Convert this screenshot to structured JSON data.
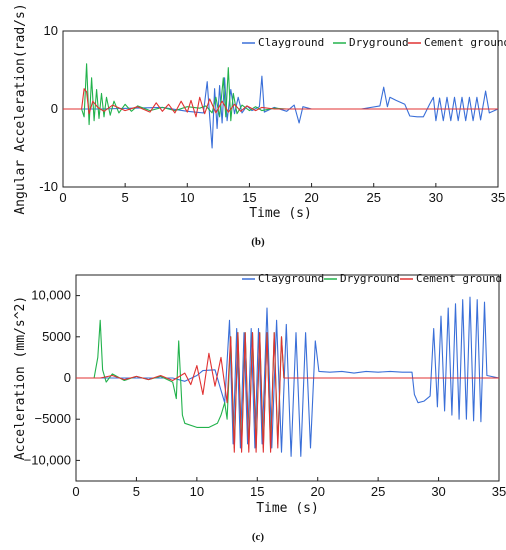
{
  "chart_data": [
    {
      "type": "line",
      "caption": "(b)",
      "xlabel": "Time (s)",
      "ylabel": "Angular Acceleration(rad/s)",
      "xlim": [
        0,
        35
      ],
      "ylim": [
        -10,
        10
      ],
      "xticks": [
        "0",
        "5",
        "10",
        "15",
        "20",
        "25",
        "30",
        "35"
      ],
      "yticks": [
        "10",
        "0",
        "-10"
      ],
      "legend_position": "top-right",
      "series": [
        {
          "name": "Clayground",
          "color": "#3a6fd8",
          "points": [
            [
              0,
              0
            ],
            [
              3,
              0
            ],
            [
              8,
              0.2
            ],
            [
              10,
              -0.3
            ],
            [
              11.3,
              -0.5
            ],
            [
              11.6,
              3.5
            ],
            [
              11.8,
              -1
            ],
            [
              12,
              -5
            ],
            [
              12.2,
              2.6
            ],
            [
              12.4,
              -2.5
            ],
            [
              12.6,
              3
            ],
            [
              12.8,
              -1.8
            ],
            [
              13,
              4
            ],
            [
              13.2,
              -1.5
            ],
            [
              13.5,
              2.5
            ],
            [
              13.8,
              -0.6
            ],
            [
              14.1,
              1.5
            ],
            [
              14.4,
              -0.5
            ],
            [
              14.8,
              0.4
            ],
            [
              15.2,
              -0.2
            ],
            [
              15.8,
              0.3
            ],
            [
              16,
              4.2
            ],
            [
              16.2,
              -0.4
            ],
            [
              17,
              0.2
            ],
            [
              18,
              -0.3
            ],
            [
              18.6,
              0.5
            ],
            [
              19,
              -1.8
            ],
            [
              19.3,
              0.3
            ],
            [
              20,
              0
            ],
            [
              24,
              0
            ],
            [
              25.5,
              0.4
            ],
            [
              25.8,
              2.8
            ],
            [
              26.1,
              0.3
            ],
            [
              26.3,
              1.5
            ],
            [
              26.8,
              1.1
            ],
            [
              27.5,
              0.6
            ],
            [
              27.9,
              -0.9
            ],
            [
              28.5,
              -1
            ],
            [
              29,
              -1
            ],
            [
              29.5,
              0.6
            ],
            [
              29.8,
              1.5
            ],
            [
              30,
              -1.5
            ],
            [
              30.3,
              1.4
            ],
            [
              30.6,
              -1.5
            ],
            [
              30.9,
              1.5
            ],
            [
              31.2,
              -1.5
            ],
            [
              31.5,
              1.5
            ],
            [
              31.8,
              -1.5
            ],
            [
              32.1,
              1.5
            ],
            [
              32.4,
              -1.5
            ],
            [
              32.7,
              1.5
            ],
            [
              33,
              -1.5
            ],
            [
              33.3,
              1.5
            ],
            [
              33.6,
              -1.4
            ],
            [
              34,
              2.3
            ],
            [
              34.3,
              -0.5
            ],
            [
              35,
              0
            ]
          ]
        },
        {
          "name": "Dryground",
          "color": "#22b24c",
          "points": [
            [
              0,
              0
            ],
            [
              1.5,
              0
            ],
            [
              1.7,
              -1
            ],
            [
              1.9,
              5.8
            ],
            [
              2.1,
              -2
            ],
            [
              2.3,
              4
            ],
            [
              2.5,
              -1.5
            ],
            [
              2.7,
              2.5
            ],
            [
              2.9,
              -1.2
            ],
            [
              3.1,
              2
            ],
            [
              3.3,
              -1
            ],
            [
              3.5,
              1.5
            ],
            [
              3.8,
              -0.8
            ],
            [
              4.1,
              1
            ],
            [
              4.5,
              -0.5
            ],
            [
              5,
              0.6
            ],
            [
              5.5,
              -0.3
            ],
            [
              6,
              0.4
            ],
            [
              7,
              -0.2
            ],
            [
              8,
              0.2
            ],
            [
              9,
              -0.2
            ],
            [
              10,
              0.3
            ],
            [
              11,
              0.1
            ],
            [
              11.5,
              0.4
            ],
            [
              12,
              -0.5
            ],
            [
              12.3,
              1.5
            ],
            [
              12.6,
              -1
            ],
            [
              12.9,
              4
            ],
            [
              13.1,
              -1
            ],
            [
              13.3,
              5.3
            ],
            [
              13.5,
              -1.5
            ],
            [
              13.7,
              2
            ],
            [
              14,
              -0.6
            ],
            [
              14.4,
              0.5
            ],
            [
              15,
              -0.2
            ],
            [
              15.5,
              0.3
            ],
            [
              16,
              -0.2
            ],
            [
              17,
              0.1
            ],
            [
              18,
              0
            ],
            [
              35,
              0
            ]
          ]
        },
        {
          "name": "Cement ground",
          "color": "#e03232",
          "points": [
            [
              0,
              0
            ],
            [
              1.5,
              0
            ],
            [
              1.7,
              2.6
            ],
            [
              1.9,
              2.2
            ],
            [
              2.1,
              -0.6
            ],
            [
              2.4,
              1
            ],
            [
              2.8,
              0.2
            ],
            [
              3.3,
              -0.3
            ],
            [
              4,
              0.5
            ],
            [
              5,
              -0.2
            ],
            [
              6,
              0.3
            ],
            [
              7,
              -0.4
            ],
            [
              7.5,
              0.8
            ],
            [
              8,
              -0.3
            ],
            [
              8.5,
              0.6
            ],
            [
              9,
              -0.5
            ],
            [
              9.5,
              1
            ],
            [
              10,
              -0.4
            ],
            [
              10.3,
              1.1
            ],
            [
              10.7,
              -1
            ],
            [
              11,
              1.5
            ],
            [
              11.4,
              -0.6
            ],
            [
              11.8,
              1.3
            ],
            [
              12.3,
              -0.5
            ],
            [
              12.8,
              1
            ],
            [
              13.3,
              -0.4
            ],
            [
              13.8,
              0.6
            ],
            [
              14.3,
              -0.3
            ],
            [
              14.8,
              0.4
            ],
            [
              15.5,
              -0.2
            ],
            [
              16,
              0.2
            ],
            [
              17,
              0
            ],
            [
              35,
              0
            ]
          ]
        }
      ]
    },
    {
      "type": "line",
      "caption": "(c)",
      "xlabel": "Time (s)",
      "ylabel": "Acceleration (mm/s^2)",
      "xlim": [
        0,
        35
      ],
      "ylim": [
        -12500,
        12500
      ],
      "xticks": [
        "0",
        "5",
        "10",
        "15",
        "20",
        "25",
        "30",
        "35"
      ],
      "yticks": [
        "10,000",
        "5000",
        "0",
        "−5000",
        "−10,000"
      ],
      "legend_position": "top-right",
      "series": [
        {
          "name": "Clayground",
          "color": "#3a6fd8",
          "points": [
            [
              0,
              0
            ],
            [
              8,
              0
            ],
            [
              9,
              -400
            ],
            [
              10,
              300
            ],
            [
              10.5,
              900
            ],
            [
              11.5,
              1000
            ],
            [
              12,
              -1500
            ],
            [
              12.3,
              -3000
            ],
            [
              12.7,
              7000
            ],
            [
              13,
              -8000
            ],
            [
              13.3,
              6000
            ],
            [
              13.6,
              -8500
            ],
            [
              13.9,
              5500
            ],
            [
              14.2,
              -8000
            ],
            [
              14.5,
              6000
            ],
            [
              14.8,
              -8500
            ],
            [
              15.1,
              6000
            ],
            [
              15.4,
              -8000
            ],
            [
              15.8,
              8500
            ],
            [
              16.2,
              -8500
            ],
            [
              16.6,
              7000
            ],
            [
              17,
              -9000
            ],
            [
              17.4,
              6500
            ],
            [
              17.8,
              -9500
            ],
            [
              18.2,
              5500
            ],
            [
              18.6,
              -9500
            ],
            [
              19,
              5500
            ],
            [
              19.4,
              -8500
            ],
            [
              19.8,
              4500
            ],
            [
              20.1,
              800
            ],
            [
              21,
              700
            ],
            [
              22,
              800
            ],
            [
              23,
              600
            ],
            [
              24,
              800
            ],
            [
              25,
              700
            ],
            [
              26,
              800
            ],
            [
              27,
              700
            ],
            [
              27.8,
              700
            ],
            [
              28,
              -2000
            ],
            [
              28.3,
              -3000
            ],
            [
              28.8,
              -2800
            ],
            [
              29.3,
              -2200
            ],
            [
              29.6,
              6000
            ],
            [
              29.9,
              -3500
            ],
            [
              30.2,
              7500
            ],
            [
              30.5,
              -4000
            ],
            [
              30.8,
              8500
            ],
            [
              31.1,
              -4500
            ],
            [
              31.4,
              9000
            ],
            [
              31.7,
              -5000
            ],
            [
              32,
              9500
            ],
            [
              32.3,
              -5000
            ],
            [
              32.6,
              9800
            ],
            [
              32.9,
              -5200
            ],
            [
              33.2,
              9500
            ],
            [
              33.5,
              -5300
            ],
            [
              33.8,
              9200
            ],
            [
              34,
              300
            ],
            [
              35,
              0
            ]
          ]
        },
        {
          "name": "Dryground",
          "color": "#22b24c",
          "points": [
            [
              0,
              0
            ],
            [
              1.5,
              0
            ],
            [
              1.8,
              2500
            ],
            [
              2,
              7000
            ],
            [
              2.2,
              1000
            ],
            [
              2.5,
              -500
            ],
            [
              3,
              500
            ],
            [
              4,
              -300
            ],
            [
              5,
              200
            ],
            [
              6,
              -200
            ],
            [
              7,
              200
            ],
            [
              8,
              -500
            ],
            [
              8.3,
              -2500
            ],
            [
              8.5,
              4500
            ],
            [
              8.8,
              -4500
            ],
            [
              9,
              -5500
            ],
            [
              10,
              -6000
            ],
            [
              11,
              -6000
            ],
            [
              11.7,
              -5500
            ],
            [
              12,
              -4500
            ],
            [
              12.3,
              -3000
            ],
            [
              12.5,
              -5000
            ],
            [
              12.8,
              5000
            ],
            [
              13.1,
              -8500
            ],
            [
              13.4,
              5500
            ],
            [
              13.7,
              -8500
            ],
            [
              14,
              5500
            ],
            [
              14.3,
              -8500
            ],
            [
              14.6,
              5500
            ],
            [
              14.9,
              -8500
            ],
            [
              15.2,
              5500
            ],
            [
              15.5,
              -8500
            ],
            [
              15.8,
              5500
            ],
            [
              16.1,
              -8500
            ],
            [
              16.4,
              5500
            ],
            [
              16.7,
              -8000
            ],
            [
              17,
              5000
            ],
            [
              17.2,
              0
            ],
            [
              35,
              0
            ]
          ]
        },
        {
          "name": "Cement ground",
          "color": "#e03232",
          "points": [
            [
              0,
              0
            ],
            [
              2,
              0
            ],
            [
              3,
              300
            ],
            [
              4,
              -200
            ],
            [
              5,
              200
            ],
            [
              6,
              -200
            ],
            [
              7,
              300
            ],
            [
              8,
              -300
            ],
            [
              9,
              600
            ],
            [
              9.5,
              -800
            ],
            [
              10,
              1500
            ],
            [
              10.5,
              -2000
            ],
            [
              11,
              3000
            ],
            [
              11.5,
              -1000
            ],
            [
              12,
              2500
            ],
            [
              12.5,
              -3000
            ],
            [
              12.8,
              5000
            ],
            [
              13.1,
              -9000
            ],
            [
              13.4,
              5500
            ],
            [
              13.7,
              -9000
            ],
            [
              14,
              5500
            ],
            [
              14.3,
              -9000
            ],
            [
              14.6,
              5500
            ],
            [
              14.9,
              -9000
            ],
            [
              15.2,
              5500
            ],
            [
              15.5,
              -9000
            ],
            [
              15.8,
              5500
            ],
            [
              16.1,
              -9000
            ],
            [
              16.4,
              5500
            ],
            [
              16.7,
              -8500
            ],
            [
              17,
              5000
            ],
            [
              17.2,
              0
            ],
            [
              35,
              0
            ]
          ]
        }
      ]
    }
  ]
}
